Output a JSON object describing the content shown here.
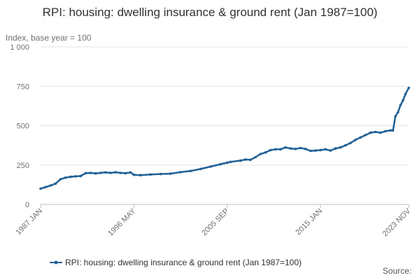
{
  "chart_data": {
    "type": "line",
    "title": "RPI: housing: dwelling insurance & ground rent (Jan 1987=100)",
    "ylabel": "Index, base year = 100",
    "ylim": [
      0,
      1000
    ],
    "y_ticks": [
      {
        "value": 0,
        "label": "0"
      },
      {
        "value": 250,
        "label": "250"
      },
      {
        "value": 500,
        "label": "500"
      },
      {
        "value": 750,
        "label": "750"
      },
      {
        "value": 1000,
        "label": "1 000"
      }
    ],
    "x_ticks": [
      "1987 JAN",
      "1996 MAY",
      "2005 SEP",
      "2015 JAN",
      "2023 NOV"
    ],
    "x_tick_dates": [
      "1987-01",
      "1996-05",
      "2005-09",
      "2015-01",
      "2023-11"
    ],
    "xlim": [
      "1987-01",
      "2023-11"
    ],
    "grid": true,
    "legend_position": "bottom",
    "series_color": "#206095",
    "series": [
      {
        "name": "RPI: housing: dwelling insurance & ground rent (Jan 1987=100)",
        "x": [
          "1987-01",
          "1987-07",
          "1988-01",
          "1988-07",
          "1989-01",
          "1989-07",
          "1990-01",
          "1990-07",
          "1991-01",
          "1991-07",
          "1992-01",
          "1992-07",
          "1993-01",
          "1993-07",
          "1994-01",
          "1994-07",
          "1995-01",
          "1995-07",
          "1996-01",
          "1996-05",
          "1997-01",
          "1998-01",
          "1999-01",
          "2000-01",
          "2001-01",
          "2002-01",
          "2003-01",
          "2004-01",
          "2005-01",
          "2005-09",
          "2006-01",
          "2007-01",
          "2007-07",
          "2008-01",
          "2008-07",
          "2009-01",
          "2009-07",
          "2010-01",
          "2010-07",
          "2011-01",
          "2011-07",
          "2012-01",
          "2012-07",
          "2013-01",
          "2013-07",
          "2014-01",
          "2014-07",
          "2015-01",
          "2015-07",
          "2016-01",
          "2016-07",
          "2017-01",
          "2017-07",
          "2018-01",
          "2018-07",
          "2019-01",
          "2019-07",
          "2020-01",
          "2020-07",
          "2021-01",
          "2021-07",
          "2022-01",
          "2022-04",
          "2022-07",
          "2022-10",
          "2023-01",
          "2023-04",
          "2023-07",
          "2023-11"
        ],
        "values": [
          100,
          110,
          120,
          132,
          160,
          170,
          175,
          178,
          180,
          198,
          200,
          197,
          200,
          203,
          200,
          204,
          200,
          198,
          203,
          188,
          186,
          190,
          193,
          195,
          205,
          212,
          225,
          240,
          255,
          265,
          270,
          278,
          285,
          283,
          300,
          320,
          330,
          345,
          350,
          350,
          362,
          355,
          352,
          358,
          352,
          340,
          342,
          345,
          350,
          342,
          355,
          362,
          375,
          390,
          410,
          425,
          440,
          455,
          460,
          455,
          465,
          470,
          470,
          560,
          585,
          630,
          660,
          700,
          740
        ]
      }
    ]
  },
  "source_label": "Source:"
}
